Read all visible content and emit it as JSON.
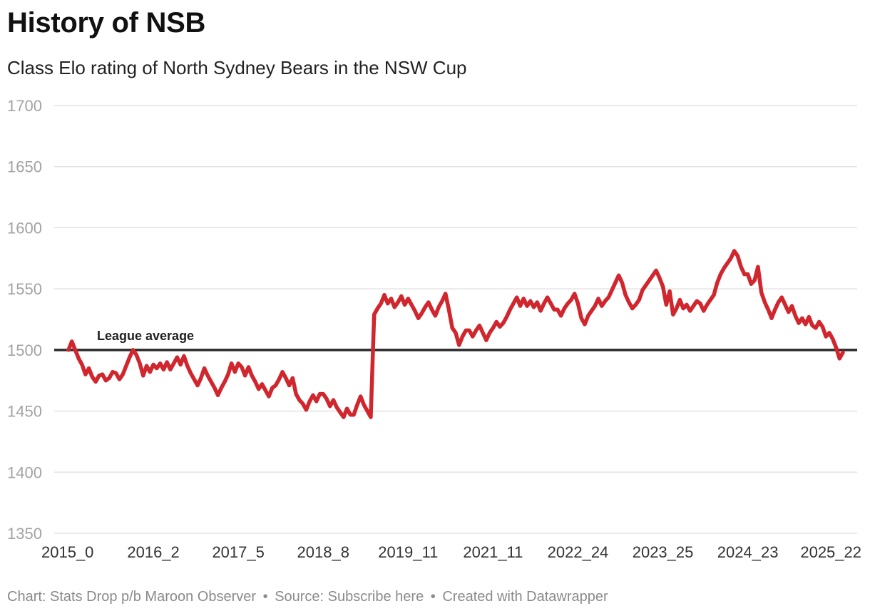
{
  "title": "History of NSB",
  "subtitle": "Class Elo rating of North Sydney Bears in the NSW Cup",
  "footer": {
    "chart_credit": "Chart: Stats Drop p/b Maroon Observer",
    "separator": "•",
    "source": "Source: Subscribe here",
    "created_with": "Created with Datawrapper"
  },
  "colors": {
    "line": "#d0262e",
    "reference": "#2b2b2b",
    "grid": "#e2e2e2",
    "tick_label": "#a3a3a3",
    "x_tick_label": "#333333"
  },
  "chart_data": {
    "type": "line",
    "title": "History of NSB",
    "subtitle": "Class Elo rating of North Sydney Bears in the NSW Cup",
    "xlabel": "",
    "ylabel": "",
    "ylim": [
      1350,
      1700
    ],
    "yticks": [
      1350,
      1400,
      1450,
      1500,
      1550,
      1600,
      1650,
      1700
    ],
    "grid": true,
    "x_ticks": [
      {
        "label": "2015_0",
        "index": 0
      },
      {
        "label": "2016_2",
        "index": 25
      },
      {
        "label": "2017_5",
        "index": 50
      },
      {
        "label": "2018_8",
        "index": 75
      },
      {
        "label": "2019_11",
        "index": 100
      },
      {
        "label": "2021_11",
        "index": 125
      },
      {
        "label": "2022_24",
        "index": 150
      },
      {
        "label": "2023_25",
        "index": 175
      },
      {
        "label": "2024_23",
        "index": 200
      },
      {
        "label": "2025_22",
        "index": 225
      }
    ],
    "reference_line": {
      "value": 1500,
      "label": "League average"
    },
    "series": [
      {
        "name": "North Sydney Bears",
        "values": [
          1500,
          1507,
          1500,
          1493,
          1488,
          1480,
          1485,
          1478,
          1474,
          1479,
          1480,
          1475,
          1477,
          1482,
          1481,
          1476,
          1480,
          1487,
          1494,
          1500,
          1496,
          1489,
          1479,
          1487,
          1482,
          1488,
          1485,
          1489,
          1484,
          1490,
          1484,
          1489,
          1494,
          1488,
          1495,
          1487,
          1481,
          1476,
          1471,
          1477,
          1485,
          1479,
          1474,
          1469,
          1463,
          1469,
          1474,
          1480,
          1489,
          1482,
          1489,
          1486,
          1479,
          1486,
          1479,
          1474,
          1468,
          1472,
          1467,
          1462,
          1469,
          1471,
          1476,
          1482,
          1477,
          1471,
          1477,
          1464,
          1459,
          1456,
          1451,
          1458,
          1463,
          1458,
          1464,
          1464,
          1460,
          1454,
          1459,
          1453,
          1449,
          1445,
          1452,
          1447,
          1447,
          1455,
          1462,
          1455,
          1450,
          1445,
          1529,
          1534,
          1538,
          1545,
          1538,
          1542,
          1535,
          1539,
          1544,
          1537,
          1542,
          1537,
          1532,
          1526,
          1530,
          1535,
          1539,
          1533,
          1528,
          1535,
          1540,
          1546,
          1533,
          1518,
          1514,
          1504,
          1511,
          1516,
          1516,
          1511,
          1516,
          1520,
          1514,
          1508,
          1514,
          1518,
          1523,
          1519,
          1522,
          1527,
          1533,
          1538,
          1543,
          1536,
          1542,
          1536,
          1540,
          1535,
          1539,
          1532,
          1538,
          1543,
          1538,
          1533,
          1533,
          1528,
          1534,
          1538,
          1541,
          1546,
          1538,
          1526,
          1521,
          1528,
          1532,
          1536,
          1542,
          1536,
          1540,
          1543,
          1549,
          1555,
          1561,
          1555,
          1545,
          1539,
          1534,
          1537,
          1541,
          1549,
          1553,
          1557,
          1561,
          1565,
          1559,
          1552,
          1537,
          1548,
          1529,
          1534,
          1541,
          1534,
          1537,
          1532,
          1536,
          1540,
          1538,
          1532,
          1537,
          1541,
          1545,
          1555,
          1562,
          1567,
          1571,
          1575,
          1581,
          1577,
          1568,
          1562,
          1562,
          1554,
          1557,
          1568,
          1547,
          1539,
          1533,
          1526,
          1533,
          1539,
          1543,
          1537,
          1531,
          1536,
          1528,
          1522,
          1526,
          1521,
          1527,
          1520,
          1518,
          1523,
          1519,
          1511,
          1514,
          1509,
          1502,
          1493,
          1498
        ]
      }
    ]
  }
}
